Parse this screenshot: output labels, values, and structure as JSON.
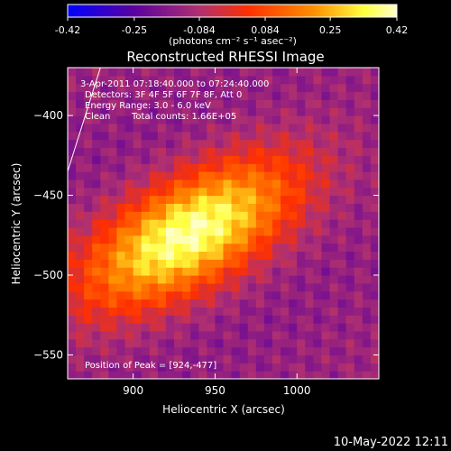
{
  "chart_data": {
    "type": "heatmap",
    "title": "Reconstructed RHESSI Image",
    "xlabel": "Heliocentric X (arcsec)",
    "ylabel": "Heliocentric Y (arcsec)",
    "xlim": [
      860,
      1050
    ],
    "ylim": [
      -565,
      -370
    ],
    "x_ticks": [
      900,
      950,
      1000
    ],
    "y_ticks": [
      -400,
      -450,
      -500,
      -550
    ],
    "colorbar": {
      "min": -0.42,
      "max": 0.42,
      "tick_values": [
        -0.42,
        -0.25,
        -0.084,
        0.084,
        0.25,
        0.42
      ],
      "tick_labels": [
        "-0.42",
        "-0.25",
        "-0.084",
        "0.084",
        "0.25",
        "0.42"
      ],
      "label": "(photons cm⁻² s⁻¹ asec⁻²)",
      "colors": [
        "#0000ff",
        "#5a00a0",
        "#b03070",
        "#ff3000",
        "#ff9000",
        "#ffff40",
        "#ffffc8"
      ]
    },
    "annotations": {
      "time_range": "3-Apr-2011 07:18:40.000 to 07:24:40.000",
      "detectors": "Detectors: 3F 4F 5F 6F 7F 8F, Att 0",
      "energy_range": "Energy Range: 3.0 - 6.0 keV",
      "clean_label": "Clean",
      "total_counts": "Total counts: 1.66E+05",
      "peak": "Position of Peak = [924,-477]"
    },
    "peak": {
      "x": 924,
      "y": -477
    },
    "source": {
      "center_x": 934,
      "center_y": -474,
      "major_sigma": 52,
      "minor_sigma": 24,
      "angle_deg": 30
    },
    "limb_line": [
      [
        860,
        -435
      ],
      [
        880,
        -370
      ]
    ]
  },
  "footer": {
    "timestamp": "10-May-2022 12:11"
  }
}
